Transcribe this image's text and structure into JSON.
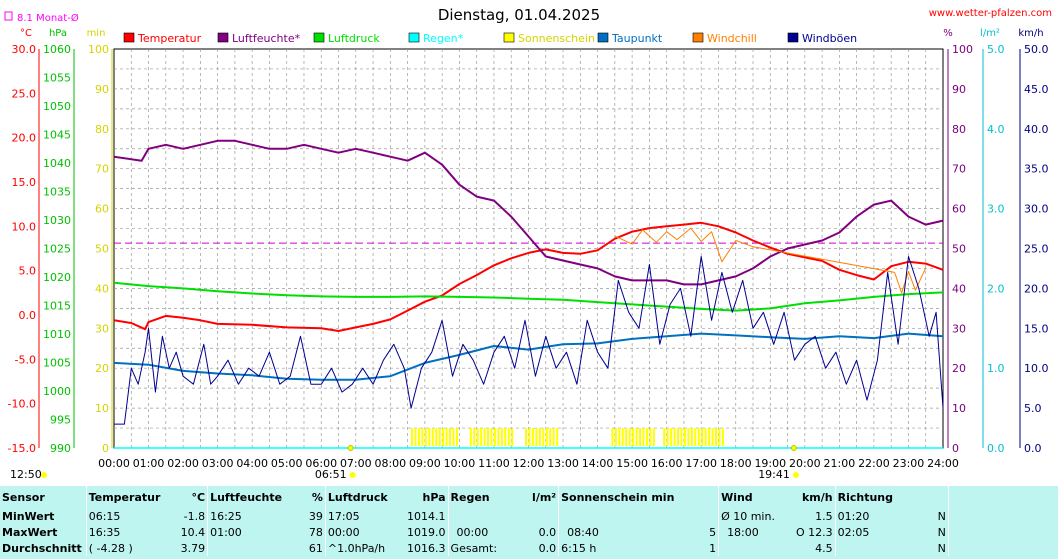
{
  "header": {
    "title": "Dienstag, 01.04.2025",
    "site": "www.wetter-pfalzen.com",
    "month_avg_label": "8.1 Monat-Ø"
  },
  "chart_data": {
    "type": "line",
    "title": "Dienstag, 01.04.2025",
    "x_ticks": [
      "00:00",
      "01:00",
      "02:00",
      "03:00",
      "04:00",
      "05:00",
      "06:00",
      "07:00",
      "08:00",
      "09:00",
      "10:00",
      "11:00",
      "12:00",
      "13:00",
      "14:00",
      "15:00",
      "16:00",
      "17:00",
      "18:00",
      "19:00",
      "20:00",
      "21:00",
      "22:00",
      "23:00",
      "24:00"
    ],
    "axes": {
      "temperature": {
        "unit": "°C",
        "range": [
          -15,
          30
        ],
        "ticks": [
          "30.0",
          "25.0",
          "20.0",
          "15.0",
          "10.0",
          "5.0",
          "0.0",
          "-5.0",
          "-10.0",
          "-15.0"
        ],
        "color": "#ff0000"
      },
      "pressure": {
        "unit": "hPa",
        "range": [
          990,
          1060
        ],
        "ticks": [
          "1060",
          "1055",
          "1050",
          "1045",
          "1040",
          "1035",
          "1030",
          "1025",
          "1020",
          "1015",
          "1010",
          "1005",
          "1000",
          "995",
          "990"
        ],
        "color": "#00c000"
      },
      "minutes": {
        "unit": "min",
        "range": [
          0,
          100
        ],
        "ticks": [
          "100",
          "90",
          "80",
          "70",
          "60",
          "50",
          "40",
          "30",
          "20",
          "10",
          "0"
        ],
        "color": "#d4d400"
      },
      "humidity": {
        "unit": "%",
        "range": [
          0,
          100
        ],
        "ticks": [
          "100",
          "90",
          "80",
          "70",
          "60",
          "50",
          "40",
          "30",
          "20",
          "10",
          "0"
        ],
        "color": "#800080"
      },
      "rain": {
        "unit": "l/m²",
        "range": [
          0,
          5
        ],
        "ticks": [
          "5.0",
          "4.0",
          "3.0",
          "2.0",
          "1.0",
          "0.0"
        ],
        "color": "#00c0d0"
      },
      "wind": {
        "unit": "km/h",
        "range": [
          0,
          50
        ],
        "ticks": [
          "50.0",
          "45.0",
          "40.0",
          "35.0",
          "30.0",
          "25.0",
          "20.0",
          "15.0",
          "10.0",
          "5.0",
          "0.0"
        ],
        "color": "#000080"
      }
    },
    "month_avg_temperature": 8.1,
    "sunrise": "06:51",
    "sunset": "19:41",
    "day_length": "12:50",
    "series": [
      {
        "name": "Temperatur",
        "color": "#ff0000",
        "axis": "temperature",
        "x": [
          0,
          0.5,
          0.9,
          1,
          1.5,
          2,
          2.5,
          3,
          4,
          5,
          6,
          6.5,
          7,
          7.5,
          8,
          8.5,
          9,
          9.5,
          10,
          10.5,
          11,
          11.5,
          12,
          12.5,
          13,
          13.5,
          14,
          14.5,
          15,
          15.5,
          16,
          16.5,
          17,
          17.5,
          18,
          18.5,
          19,
          19.5,
          20,
          20.5,
          21,
          21.5,
          22,
          22.5,
          23,
          23.5,
          24
        ],
        "y": [
          -0.6,
          -0.9,
          -1.6,
          -0.8,
          -0.1,
          -0.3,
          -0.6,
          -1.0,
          -1.1,
          -1.4,
          -1.5,
          -1.8,
          -1.4,
          -1.0,
          -0.5,
          0.5,
          1.5,
          2.2,
          3.5,
          4.5,
          5.6,
          6.4,
          7.0,
          7.4,
          7.0,
          6.9,
          7.3,
          8.6,
          9.4,
          9.8,
          10.0,
          10.2,
          10.4,
          10.0,
          9.3,
          8.4,
          7.6,
          6.9,
          6.5,
          6.1,
          5.1,
          4.5,
          4.0,
          5.5,
          6.0,
          5.8,
          5.1
        ]
      },
      {
        "name": "Luftfeuchte*",
        "color": "#800080",
        "axis": "humidity",
        "x": [
          0,
          0.8,
          1,
          1.5,
          2,
          2.5,
          3,
          3.5,
          4,
          4.5,
          5,
          5.5,
          6,
          6.5,
          7,
          7.5,
          8,
          8.5,
          9,
          9.5,
          10,
          10.5,
          11,
          11.5,
          12,
          12.5,
          13,
          13.5,
          14,
          14.5,
          15,
          15.5,
          16,
          16.5,
          17,
          17.5,
          18,
          18.5,
          19,
          19.5,
          20,
          20.5,
          21,
          21.5,
          22,
          22.5,
          23,
          23.5,
          24
        ],
        "y": [
          73,
          72,
          75,
          76,
          75,
          76,
          77,
          77,
          76,
          75,
          75,
          76,
          75,
          74,
          75,
          74,
          73,
          72,
          74,
          71,
          66,
          63,
          62,
          58,
          53,
          48,
          47,
          46,
          45,
          43,
          42,
          42,
          42,
          41,
          41,
          42,
          43,
          45,
          48,
          50,
          51,
          52,
          54,
          58,
          61,
          62,
          58,
          56,
          57
        ]
      },
      {
        "name": "Luftdruck",
        "color": "#00e000",
        "axis": "pressure",
        "x": [
          0,
          1,
          2,
          3,
          4,
          5,
          6,
          7,
          8,
          9,
          10,
          11,
          12,
          13,
          14,
          15,
          16,
          17,
          18,
          19,
          20,
          21,
          22,
          23,
          24
        ],
        "y": [
          1019.0,
          1018.4,
          1018.0,
          1017.5,
          1017.1,
          1016.8,
          1016.6,
          1016.5,
          1016.5,
          1016.6,
          1016.5,
          1016.4,
          1016.2,
          1016.0,
          1015.6,
          1015.2,
          1014.8,
          1014.4,
          1014.1,
          1014.5,
          1015.4,
          1015.9,
          1016.5,
          1017.0,
          1017.3
        ]
      },
      {
        "name": "Regen*",
        "color": "#00ffff",
        "axis": "rain",
        "x": [
          0,
          24
        ],
        "y": [
          0,
          0
        ]
      },
      {
        "name": "Sonnenschein",
        "color": "#ffff00",
        "axis": "minutes"
      },
      {
        "name": "Taupunkt",
        "color": "#0070c0",
        "axis": "temperature",
        "x": [
          0,
          1,
          2,
          3,
          4,
          5,
          6,
          7,
          8,
          9,
          10,
          11,
          12,
          13,
          14,
          15,
          16,
          17,
          18,
          19,
          20,
          21,
          22,
          23,
          24
        ],
        "y": [
          -5.4,
          -5.6,
          -6.3,
          -6.6,
          -6.8,
          -7.2,
          -7.3,
          -7.3,
          -6.9,
          -5.4,
          -4.5,
          -3.5,
          -3.9,
          -3.3,
          -3.2,
          -2.7,
          -2.4,
          -2.1,
          -2.3,
          -2.5,
          -2.7,
          -2.4,
          -2.6,
          -2.1,
          -2.4
        ]
      },
      {
        "name": "Windchill",
        "color": "#ff8000",
        "axis": "temperature",
        "x": [
          14.5,
          15,
          15.3,
          15.7,
          16,
          16.3,
          16.7,
          17,
          17.3,
          17.6,
          18,
          18.5,
          22.6,
          22.8,
          23,
          23.2,
          23.5
        ],
        "y": [
          8.9,
          8.0,
          9.6,
          8.2,
          9.4,
          8.5,
          9.8,
          8.3,
          9.4,
          6.0,
          8.4,
          7.7,
          4.8,
          2.5,
          4.9,
          2.8,
          5.3
        ]
      },
      {
        "name": "Windböen",
        "color": "#000090",
        "axis": "wind",
        "x": [
          0,
          0.3,
          0.5,
          0.7,
          0.9,
          1.0,
          1.2,
          1.4,
          1.6,
          1.8,
          2.0,
          2.3,
          2.6,
          2.8,
          3.0,
          3.3,
          3.6,
          3.9,
          4.2,
          4.5,
          4.8,
          5.1,
          5.4,
          5.7,
          6.0,
          6.3,
          6.6,
          6.9,
          7.2,
          7.5,
          7.8,
          8.1,
          8.4,
          8.6,
          8.9,
          9.2,
          9.5,
          9.8,
          10.1,
          10.4,
          10.7,
          11.0,
          11.3,
          11.6,
          11.9,
          12.2,
          12.5,
          12.8,
          13.1,
          13.4,
          13.7,
          14.0,
          14.3,
          14.6,
          14.9,
          15.2,
          15.5,
          15.8,
          16.1,
          16.4,
          16.7,
          17.0,
          17.3,
          17.6,
          17.9,
          18.2,
          18.5,
          18.8,
          19.1,
          19.4,
          19.7,
          20.0,
          20.3,
          20.6,
          20.9,
          21.2,
          21.5,
          21.8,
          22.1,
          22.4,
          22.7,
          23.0,
          23.3,
          23.6,
          23.8,
          24.0
        ],
        "y": [
          3,
          3,
          10,
          8,
          12,
          15,
          7,
          14,
          10,
          12,
          9,
          8,
          13,
          8,
          9,
          11,
          8,
          10,
          9,
          12,
          8,
          9,
          14,
          8,
          8,
          10,
          7,
          8,
          10,
          8,
          11,
          13,
          10,
          5,
          10,
          12,
          16,
          9,
          13,
          11,
          8,
          12,
          14,
          10,
          16,
          9,
          14,
          10,
          12,
          8,
          16,
          12,
          10,
          21,
          17,
          15,
          23,
          13,
          18,
          20,
          14,
          24,
          16,
          22,
          17,
          21,
          15,
          17,
          13,
          17,
          11,
          13,
          14,
          10,
          12,
          8,
          11,
          6,
          11,
          22,
          13,
          24,
          20,
          14,
          17,
          5
        ]
      }
    ]
  },
  "sun_bars": [
    [
      8.6,
      9.9
    ],
    [
      10.3,
      11.5
    ],
    [
      11.9,
      12.8
    ],
    [
      14.4,
      15.6
    ],
    [
      15.9,
      17.7
    ]
  ],
  "legend": [
    "Temperatur",
    "Luftfeuchte*",
    "Luftdruck",
    "Regen*",
    "Sonnenschein",
    "Taupunkt",
    "Windchill",
    "Windböen"
  ],
  "table": {
    "headers": [
      {
        "name": "Sensor",
        "unit": ""
      },
      {
        "name": "Temperatur",
        "unit": "°C"
      },
      {
        "name": "Luftfeuchte",
        "unit": "%"
      },
      {
        "name": "Luftdruck",
        "unit": "hPa"
      },
      {
        "name": "Regen",
        "unit": "l/m²"
      },
      {
        "name": "Sonnenschein min",
        "unit": ""
      },
      {
        "name": "Wind",
        "unit": "km/h"
      },
      {
        "name": "Richtung",
        "unit": ""
      }
    ],
    "rows": [
      [
        "MinWert",
        "06:15",
        "-1.8",
        "16:25",
        "39",
        "17:05",
        "1014.1",
        "",
        "",
        "",
        "",
        "Ø 10 min.",
        "1.5",
        "01:20",
        "N"
      ],
      [
        "MaxWert",
        "16:35",
        "10.4",
        "01:00",
        "78",
        "00:00",
        "1019.0",
        "00:00",
        "0.0",
        "08:40",
        "5",
        "18:00",
        "O 12.3",
        "02:05",
        "N"
      ],
      [
        "Durchschnitt",
        "( -4.28 )",
        "3.79",
        "",
        "61",
        "^1.0hPa/h",
        "1016.3",
        "Gesamt:",
        "0.0",
        "6:15 h",
        "1",
        "",
        "4.5",
        "",
        "N"
      ]
    ]
  }
}
